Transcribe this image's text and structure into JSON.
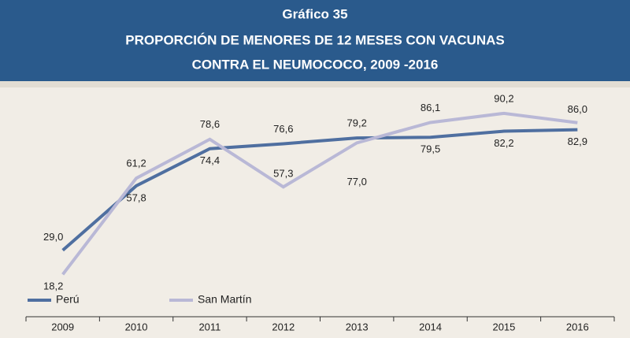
{
  "chart_data": {
    "type": "line",
    "title": [
      "Gráfico 35",
      "PROPORCIÓN DE MENORES DE 12 MESES CON VACUNAS",
      "CONTRA EL NEUMOCOCO, 2009 -2016"
    ],
    "categories": [
      "2009",
      "2010",
      "2011",
      "2012",
      "2013",
      "2014",
      "2015",
      "2016"
    ],
    "series": [
      {
        "name": "Perú",
        "color": "#4f6fa0",
        "values": [
          29.0,
          57.8,
          74.4,
          76.6,
          79.2,
          79.5,
          82.2,
          82.9
        ],
        "value_labels": [
          "29,0",
          "57,8",
          "74,4",
          "76,6",
          "79,2",
          "79,5",
          "82,2",
          "82,9"
        ]
      },
      {
        "name": "San Martín",
        "color": "#b9b8d6",
        "values": [
          18.2,
          61.2,
          78.6,
          57.3,
          77.0,
          86.1,
          90.2,
          86.0
        ],
        "value_labels": [
          "18,2",
          "61,2",
          "78,6",
          "57,3",
          "77,0",
          "86,1",
          "90,2",
          "86,0"
        ]
      }
    ],
    "ylim": [
      0,
      100
    ]
  }
}
